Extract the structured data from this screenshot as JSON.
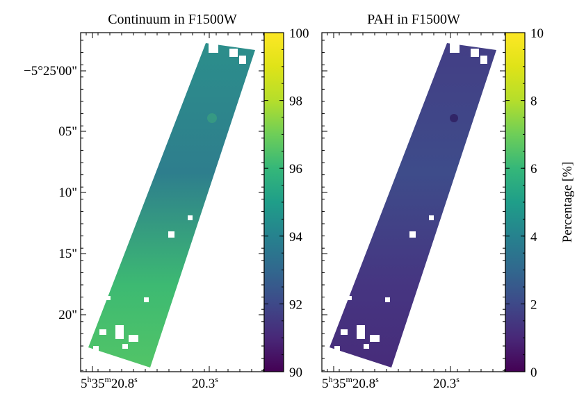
{
  "figure": {
    "projection": "sky (RA / Dec) map",
    "dec_axis_labels": [
      "−5°25'00\"",
      "05\"",
      "10\"",
      "15\"",
      "20\""
    ],
    "ra_axis_labels": [
      {
        "h": "5",
        "m": "35",
        "s": "20.8"
      },
      {
        "s": "20.3"
      }
    ]
  },
  "chart_data": [
    {
      "type": "heatmap",
      "title": "Continuum in F1500W",
      "xlabel": "",
      "ylabel": "",
      "colormap": "viridis",
      "colorbar_range": [
        90,
        100
      ],
      "colorbar_ticks": [
        90,
        92,
        94,
        96,
        98,
        100
      ],
      "colorbar_tick_labels": [
        "90",
        "92",
        "94",
        "96",
        "98",
        "100"
      ],
      "colorbar_label": "",
      "typical_value_range": [
        93,
        96
      ],
      "map_colors": {
        "upper": "#2c8e8b",
        "middle": "#2e7e8d",
        "lower": "#3dba72",
        "bottom": "#52c467"
      }
    },
    {
      "type": "heatmap",
      "title": "PAH in F1500W",
      "xlabel": "",
      "ylabel": "",
      "colormap": "viridis",
      "colorbar_range": [
        0,
        10
      ],
      "colorbar_ticks": [
        0,
        2,
        4,
        6,
        8,
        10
      ],
      "colorbar_tick_labels": [
        "0",
        "2",
        "4",
        "6",
        "8",
        "10"
      ],
      "colorbar_label": "Percentage [%]",
      "typical_value_range": [
        0.5,
        2.5
      ],
      "map_colors": {
        "upper": "#433e85",
        "middle": "#3e4c8a",
        "lower": "#463581",
        "bottom": "#472c7a"
      }
    }
  ]
}
